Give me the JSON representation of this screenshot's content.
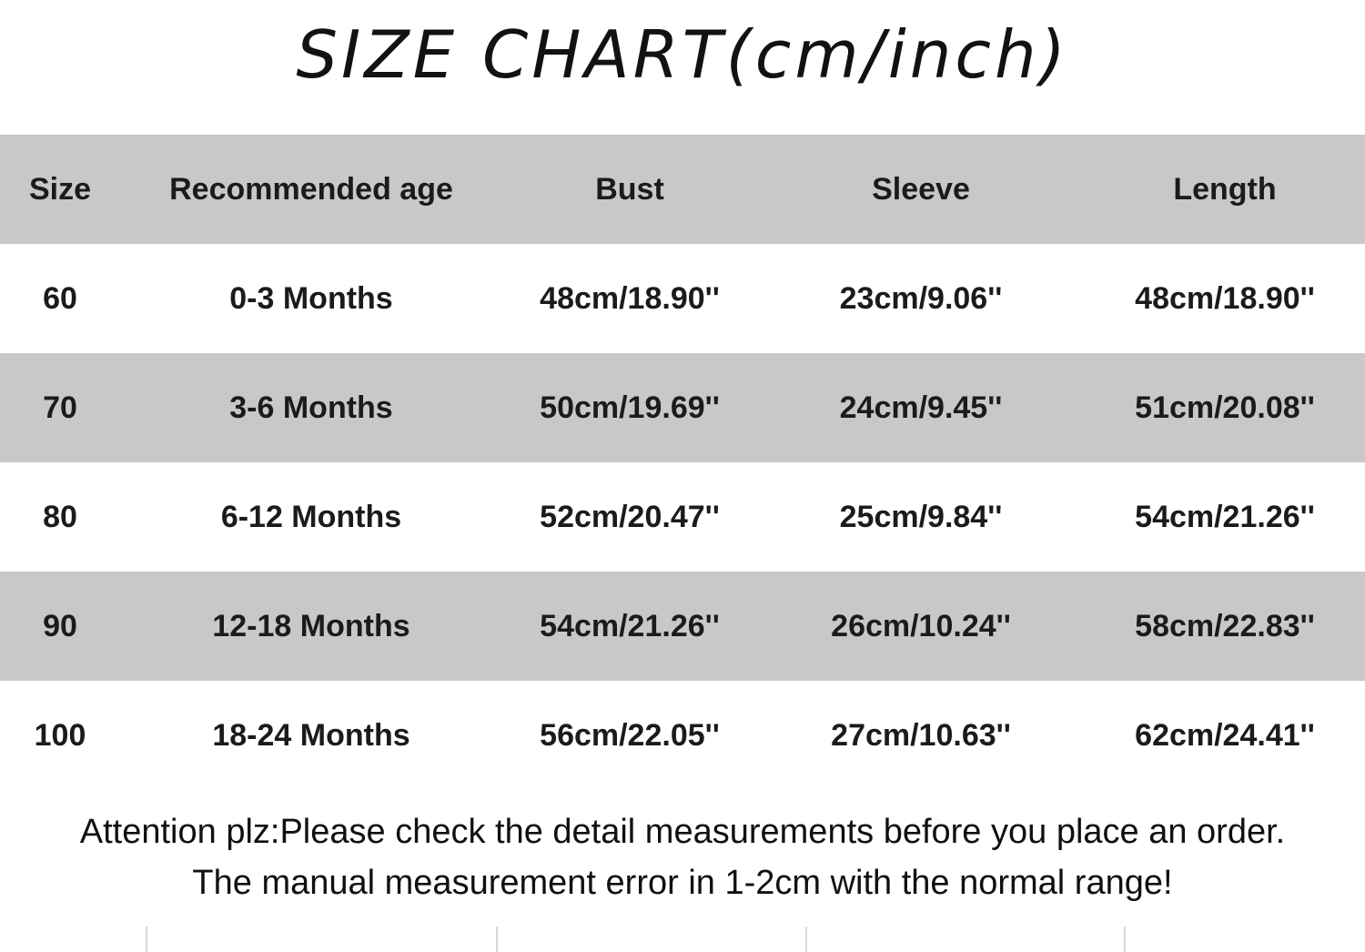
{
  "page": {
    "title": "SIZE CHART(cm/inch)"
  },
  "chart_data": {
    "type": "table",
    "title": "SIZE CHART(cm/inch)",
    "units": "cm/inch",
    "columns": [
      "Size",
      "Recommended age",
      "Bust",
      "Sleeve",
      "Length"
    ],
    "rows": [
      [
        "60",
        "0-3 Months",
        "48cm/18.90''",
        "23cm/9.06''",
        "48cm/18.90''"
      ],
      [
        "70",
        "3-6 Months",
        "50cm/19.69''",
        "24cm/9.45''",
        "51cm/20.08''"
      ],
      [
        "80",
        "6-12 Months",
        "52cm/20.47''",
        "25cm/9.84''",
        "54cm/21.26''"
      ],
      [
        "90",
        "12-18 Months",
        "54cm/21.26''",
        "26cm/10.24''",
        "58cm/22.83''"
      ],
      [
        "100",
        "18-24 Months",
        "56cm/22.05''",
        "27cm/10.63''",
        "62cm/24.41''"
      ]
    ],
    "notes": [
      "Attention plz:Please check the detail measurements before you place an order.",
      "The manual measurement error in 1-2cm with the normal range!"
    ],
    "layout_hints": {
      "striped": "header and alternate rows gray",
      "row_band_color": "#c9c8c6",
      "text_color": "#1b1b1b"
    }
  }
}
